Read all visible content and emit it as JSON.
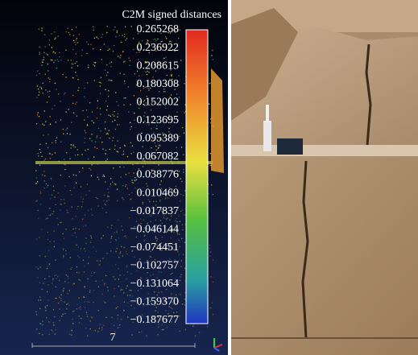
{
  "colorbar": {
    "title": "C2M signed distances",
    "ticks": [
      "0.265268",
      "0.236922",
      "0.208615",
      "0.180308",
      "0.152002",
      "0.123695",
      "0.095389",
      "0.067082",
      "0.038776",
      "0.010469",
      "−0.017837",
      "−0.046144",
      "−0.074451",
      "−0.102757",
      "−0.131064",
      "−0.159370",
      "−0.187677"
    ]
  },
  "scale_bar": {
    "label": "7"
  }
}
